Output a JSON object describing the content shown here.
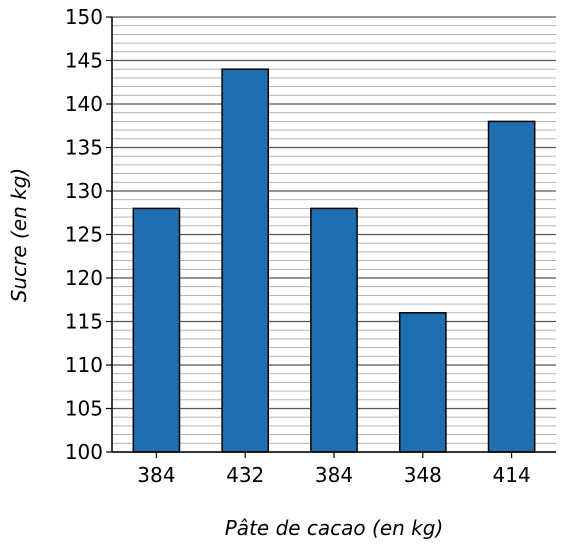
{
  "chart_data": {
    "type": "bar",
    "categories": [
      "384",
      "432",
      "384",
      "348",
      "414"
    ],
    "values": [
      128,
      144,
      128,
      116,
      138
    ],
    "xlabel": "Pâte de cacao (en kg)",
    "ylabel": "Sucre (en kg)",
    "ylim": [
      100,
      150
    ],
    "y_major_ticks": [
      "100",
      "105",
      "110",
      "115",
      "120",
      "125",
      "130",
      "135",
      "140",
      "145",
      "150"
    ],
    "y_minor_step": 1,
    "grid": true,
    "colors": {
      "bar": "#1f6fb0",
      "bar_edge": "#000000",
      "grid_major": "#555555",
      "grid_minor": "#aaaaaa"
    }
  }
}
